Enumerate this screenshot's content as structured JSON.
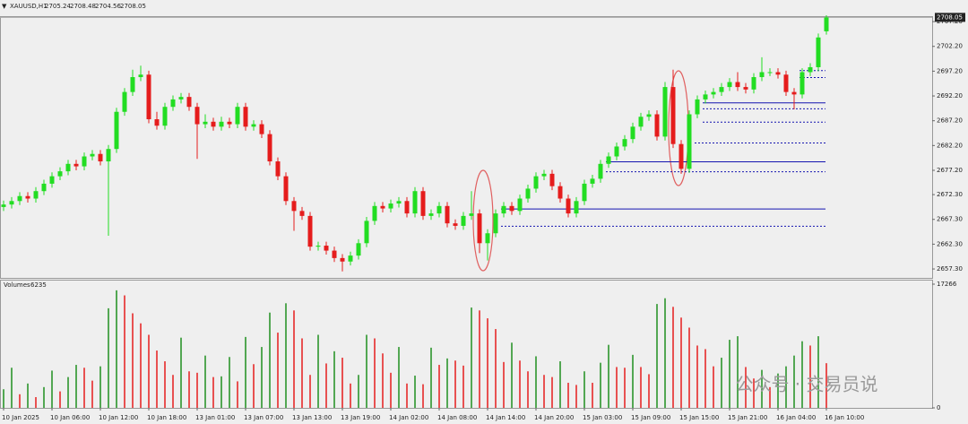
{
  "chart_data": {
    "type": "candlestick",
    "title": "XAUUSD,H1",
    "categories": [
      "10 Jan 2025",
      null,
      null,
      null,
      null,
      null,
      "10 Jan 06:00",
      null,
      null,
      null,
      null,
      null,
      "10 Jan 12:00",
      null,
      null,
      null,
      null,
      null,
      "10 Jan 18:00",
      null,
      null,
      null,
      null,
      null,
      "13 Jan 01:00",
      null,
      null,
      null,
      null,
      null,
      "13 Jan 07:00",
      null,
      null,
      null,
      null,
      null,
      "13 Jan 13:00",
      null,
      null,
      null,
      null,
      null,
      "13 Jan 19:00",
      null,
      null,
      null,
      null,
      null,
      "14 Jan 02:00",
      null,
      null,
      null,
      null,
      null,
      "14 Jan 08:00",
      null,
      null,
      null,
      null,
      null,
      "14 Jan 14:00",
      null,
      null,
      null,
      null,
      null,
      "14 Jan 20:00",
      null,
      null,
      null,
      null,
      null,
      "15 Jan 03:00",
      null,
      null,
      null,
      null,
      null,
      "15 Jan 09:00",
      null,
      null,
      null,
      null,
      null,
      "15 Jan 15:00",
      null,
      null,
      null,
      null,
      null,
      "15 Jan 21:00",
      null,
      null,
      null,
      null,
      null,
      "16 Jan 04:00",
      null,
      null,
      null,
      null,
      null,
      "16 Jan 10:00"
    ],
    "open": [
      2669.8,
      2670.3,
      2671,
      2672,
      2671.5,
      2673,
      2674.5,
      2676,
      2677,
      2678.5,
      2678,
      2680,
      2680.5,
      2679,
      2681.5,
      2689,
      2693,
      2696,
      2696.5,
      2687.5,
      2686.2,
      2690,
      2691.5,
      2692,
      2690,
      2686.5,
      2687,
      2686,
      2687,
      2686.5,
      2690,
      2686,
      2686.5,
      2684.5,
      2679,
      2676,
      2671,
      2669,
      2668,
      2661.8,
      2662,
      2661,
      2659.5,
      2658.8,
      2660,
      2662.5,
      2667,
      2670,
      2669.5,
      2670.5,
      2671,
      2668.5,
      2673,
      2668,
      2668.5,
      2670,
      2666.5,
      2666,
      2668,
      2668.5,
      2662.5,
      2664.5,
      2668.5,
      2670,
      2669,
      2671.5,
      2673.5,
      2676,
      2676.5,
      2674,
      2671.5,
      2668.5,
      2671,
      2674.5,
      2675.5,
      2678.5,
      2680,
      2682,
      2683.5,
      2686,
      2688,
      2688.5,
      2684,
      2694,
      2682.5,
      2677.5,
      2688.5,
      2691.5,
      2692.5,
      2693,
      2694,
      2695,
      2694,
      2693.5,
      2696,
      2697,
      2697,
      2696.5,
      2693,
      2692.5,
      2697,
      2698,
      2705.24
    ],
    "high": [
      2671.1,
      2671.8,
      2672.8,
      2672.8,
      2673.8,
      2675.3,
      2676.8,
      2677.8,
      2679.3,
      2679.3,
      2680.8,
      2681.3,
      2681.3,
      2682.3,
      2689.8,
      2693.8,
      2697.5,
      2698.3,
      2697.3,
      2689,
      2690.8,
      2692.3,
      2692.8,
      2692.8,
      2690.8,
      2688.5,
      2687.8,
      2688,
      2687.8,
      2690.8,
      2690.8,
      2687.3,
      2687.3,
      2685.3,
      2679.8,
      2676.8,
      2671.8,
      2669.8,
      2668.8,
      2662.8,
      2662.8,
      2661.8,
      2660.3,
      2660.8,
      2663.3,
      2667.8,
      2670.8,
      2670.8,
      2671.3,
      2671.8,
      2671.8,
      2673.8,
      2673.8,
      2669.3,
      2670.8,
      2670.8,
      2667.3,
      2668.8,
      2673,
      2669.3,
      2665.3,
      2669.3,
      2670.8,
      2670.8,
      2672.3,
      2674.3,
      2676.8,
      2677.3,
      2677.3,
      2674.8,
      2672.3,
      2671.8,
      2675.3,
      2676.3,
      2679.3,
      2680.8,
      2682.8,
      2684.3,
      2686.8,
      2688.8,
      2689.3,
      2689.3,
      2695,
      2697.5,
      2683.3,
      2689.3,
      2692.3,
      2693.3,
      2693.8,
      2694.8,
      2695.8,
      2697,
      2694.8,
      2696.8,
      2700,
      2697.8,
      2697.8,
      2697.3,
      2693.8,
      2697.8,
      2698.8,
      2704.8,
      2708.48
    ],
    "low": [
      2669,
      2669.5,
      2670.2,
      2670.7,
      2670.7,
      2672.2,
      2673.7,
      2675.2,
      2676.2,
      2677.2,
      2677.2,
      2679.2,
      2678.2,
      2664,
      2680.7,
      2688.2,
      2692.2,
      2695.2,
      2686.7,
      2685.4,
      2685.4,
      2689.2,
      2690.7,
      2689.2,
      2679.5,
      2685.7,
      2685.2,
      2685.2,
      2685.7,
      2685.7,
      2685.2,
      2685.2,
      2683.7,
      2678.2,
      2675.2,
      2670.2,
      2665,
      2667.2,
      2661,
      2661,
      2660.2,
      2658.7,
      2656.8,
      2658,
      2659.2,
      2661.7,
      2666.2,
      2668.7,
      2668.7,
      2669.7,
      2667.7,
      2667.7,
      2667.2,
      2667.2,
      2667.7,
      2665.7,
      2665.2,
      2665.2,
      2667.2,
      2660.5,
      2659,
      2663.7,
      2667.7,
      2668.2,
      2668.2,
      2670.7,
      2672.7,
      2675.2,
      2673.2,
      2670.7,
      2667.7,
      2667.7,
      2670.2,
      2673.7,
      2674.7,
      2677.7,
      2679.2,
      2681.2,
      2682.7,
      2685.2,
      2687.2,
      2683.2,
      2683.2,
      2681.7,
      2676.5,
      2676.7,
      2687.7,
      2690.7,
      2691.7,
      2692.2,
      2693.2,
      2693.2,
      2692.7,
      2692.7,
      2695.2,
      2696.2,
      2695.7,
      2692.2,
      2689.5,
      2691.7,
      2696.2,
      2697.2,
      2704.56
    ],
    "close": [
      2670.3,
      2671,
      2672,
      2671.5,
      2673,
      2674.5,
      2676,
      2677,
      2678.5,
      2678,
      2680,
      2680.5,
      2679,
      2681.5,
      2689,
      2693,
      2696,
      2696.5,
      2687.5,
      2686.2,
      2690,
      2691.5,
      2692,
      2690,
      2686.5,
      2687,
      2686,
      2687,
      2686.5,
      2690,
      2686,
      2686.5,
      2684.5,
      2679,
      2676,
      2671,
      2669,
      2668,
      2661.8,
      2662,
      2661,
      2659.5,
      2658.8,
      2660,
      2662.5,
      2667,
      2670,
      2669.5,
      2670.5,
      2671,
      2668.5,
      2673,
      2668,
      2668.5,
      2670,
      2666.5,
      2666,
      2668,
      2668.5,
      2662.5,
      2664.5,
      2668.5,
      2670,
      2669,
      2671.5,
      2673.5,
      2676,
      2676.5,
      2674,
      2671.5,
      2668.5,
      2671,
      2674.5,
      2675.5,
      2678.5,
      2680,
      2682,
      2683.5,
      2686,
      2688,
      2688.5,
      2684,
      2694,
      2682.5,
      2677.5,
      2688.5,
      2691.5,
      2692.5,
      2693,
      2694,
      2695,
      2694,
      2693.5,
      2696,
      2697,
      2697,
      2696.5,
      2693,
      2692.5,
      2697,
      2698,
      2704,
      2708.05
    ],
    "up_color": "#22dd22",
    "down_color": "#e51c1c",
    "ylim": [
      2655.5,
      2708.3
    ],
    "yticks": [
      {
        "value": 2707.2,
        "label": "2707.20"
      },
      {
        "value": 2702.2,
        "label": "2702.20"
      },
      {
        "value": 2697.2,
        "label": "2697.20"
      },
      {
        "value": 2692.2,
        "label": "2692.20"
      },
      {
        "value": 2687.2,
        "label": "2687.20"
      },
      {
        "value": 2682.2,
        "label": "2682.20"
      },
      {
        "value": 2677.2,
        "label": "2677.20"
      },
      {
        "value": 2672.3,
        "label": "2672.30"
      },
      {
        "value": 2667.3,
        "label": "2667.30"
      },
      {
        "value": 2662.3,
        "label": "2662.30"
      },
      {
        "value": 2657.3,
        "label": "2657.30"
      }
    ],
    "levels": [
      {
        "value": 2669.5,
        "from": 62,
        "style": "solid"
      },
      {
        "value": 2666,
        "from": 62,
        "style": "dashed"
      },
      {
        "value": 2679,
        "from": 75,
        "style": "solid"
      },
      {
        "value": 2677,
        "from": 75,
        "style": "dashed"
      },
      {
        "value": 2690.9,
        "from": 87,
        "style": "solid"
      },
      {
        "value": 2689.7,
        "from": 87,
        "style": "dashed"
      },
      {
        "value": 2687,
        "from": 87,
        "style": "dashed"
      },
      {
        "value": 2682.8,
        "from": 86,
        "style": "dashed"
      },
      {
        "value": 2697.4,
        "from": 99,
        "style": "dashed"
      },
      {
        "value": 2696,
        "from": 99,
        "style": "dashed"
      }
    ],
    "level_color": "#1515b0",
    "volume_title": "Volumes",
    "volumes": [
      2600,
      5600,
      1900,
      3400,
      1500,
      2900,
      5200,
      2300,
      4300,
      6000,
      5600,
      3800,
      5800,
      13900,
      16400,
      15700,
      13200,
      11800,
      10200,
      8000,
      6500,
      4600,
      9800,
      5100,
      4900,
      7300,
      4300,
      4400,
      7100,
      3700,
      9900,
      6100,
      8500,
      13300,
      10500,
      14600,
      13600,
      9700,
      4600,
      10200,
      6200,
      7900,
      7000,
      3400,
      4600,
      10200,
      9700,
      7600,
      4900,
      8500,
      3400,
      4500,
      3300,
      8400,
      6000,
      6900,
      6600,
      5900,
      14000,
      13600,
      12500,
      11000,
      6400,
      9100,
      6600,
      5100,
      7200,
      4600,
      4300,
      6500,
      3500,
      3200,
      5100,
      3500,
      6300,
      8800,
      5700,
      5600,
      7400,
      5700,
      4700,
      14500,
      15300,
      14100,
      12600,
      11200,
      8700,
      8200,
      5800,
      7000,
      9500,
      10000,
      5700,
      4100,
      5300,
      2900,
      4800,
      5800,
      7300,
      9300,
      8700,
      10000,
      6235
    ],
    "vlim": [
      0,
      17266
    ],
    "vticks": [
      17266,
      0
    ],
    "watermark": "公众号 · 交易员说"
  }
}
